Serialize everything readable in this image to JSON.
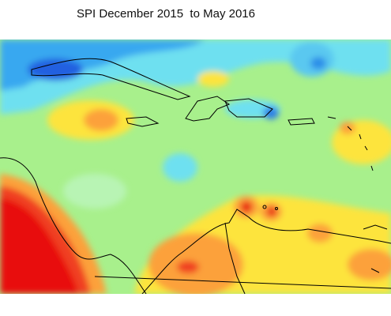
{
  "title": "SPI December 2015  to May 2016"
}
